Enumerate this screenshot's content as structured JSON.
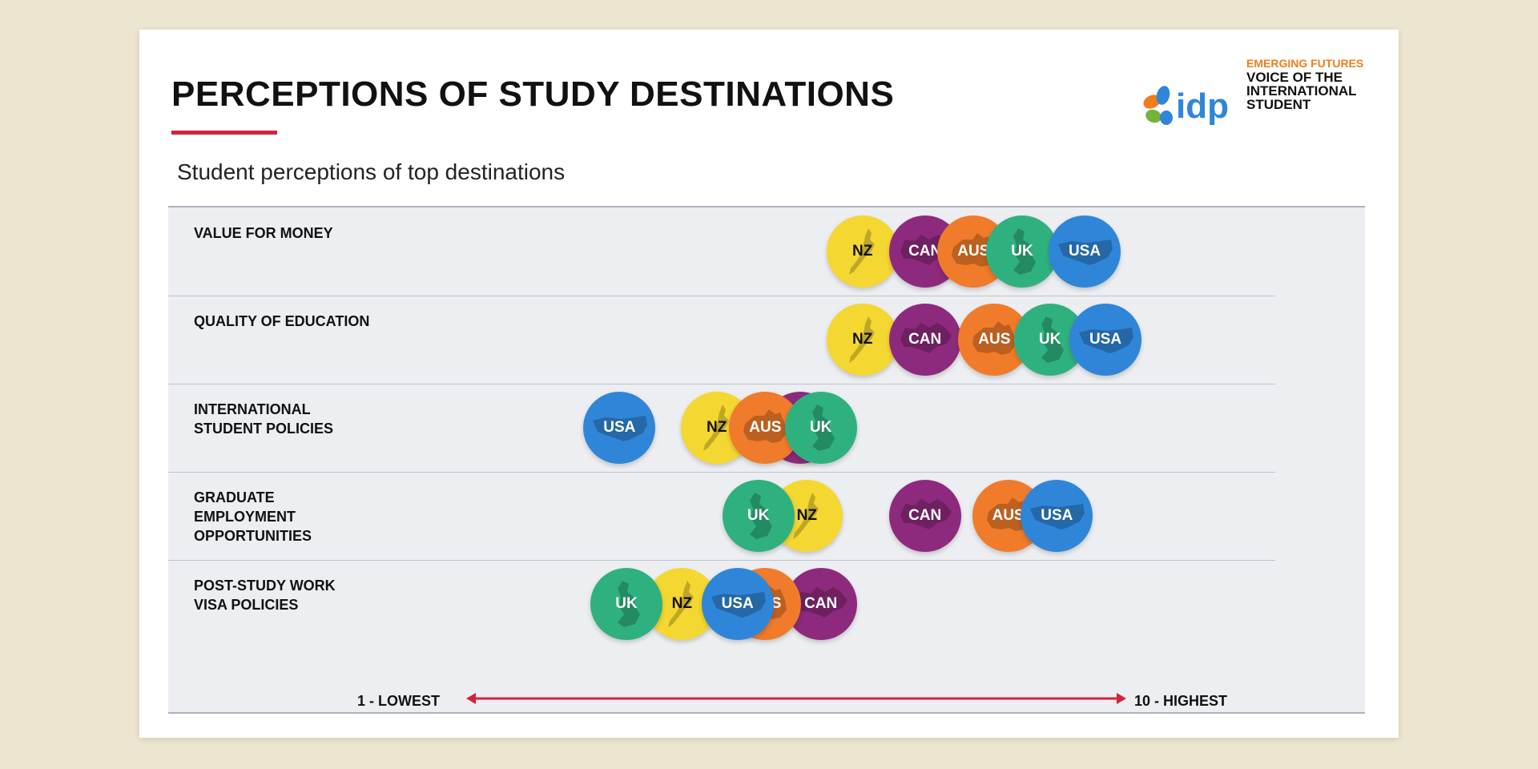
{
  "header": {
    "title": "PERCEPTIONS OF STUDY DESTINATIONS",
    "subtitle": "Student perceptions of top destinations"
  },
  "logo": {
    "brand": "idp",
    "line1": "EMERGING FUTURES",
    "line2": "VOICE OF THE",
    "line3": "INTERNATIONAL",
    "line4": "STUDENT"
  },
  "colors": {
    "accent_red": "#d4213d",
    "AUS": "#f07b2a",
    "CAN": "#8e2a7d",
    "NZ": "#f5d731",
    "UK": "#2fb17f",
    "USA": "#2f86d8"
  },
  "chart_data": {
    "type": "scatter",
    "title": "Student perceptions of top destinations",
    "scale": {
      "min_label": "1 - LOWEST",
      "max_label": "10 - HIGHEST",
      "range": [
        1,
        10
      ]
    },
    "categories": [
      "VALUE FOR MONEY",
      "QUALITY OF EDUCATION",
      "INTERNATIONAL STUDENT POLICIES",
      "GRADUATE EMPLOYMENT OPPORTUNITIES",
      "POST-STUDY WORK VISA POLICIES"
    ],
    "category_lines": [
      [
        "VALUE FOR MONEY"
      ],
      [
        "QUALITY OF EDUCATION"
      ],
      [
        "INTERNATIONAL",
        "STUDENT POLICIES"
      ],
      [
        "GRADUATE",
        "EMPLOYMENT",
        "OPPORTUNITIES"
      ],
      [
        "POST-STUDY WORK",
        "VISA POLICIES"
      ]
    ],
    "series": [
      {
        "name": "NZ",
        "values": [
          6.5,
          6.5,
          4.4,
          5.7,
          3.9
        ]
      },
      {
        "name": "CAN",
        "values": [
          7.4,
          7.4,
          5.6,
          7.4,
          5.9
        ]
      },
      {
        "name": "AUS",
        "values": [
          8.1,
          8.4,
          5.1,
          8.6,
          5.1
        ]
      },
      {
        "name": "UK",
        "values": [
          8.8,
          9.2,
          5.9,
          5.0,
          3.1
        ]
      },
      {
        "name": "USA",
        "values": [
          9.7,
          10.0,
          3.0,
          9.3,
          4.7
        ]
      }
    ]
  }
}
